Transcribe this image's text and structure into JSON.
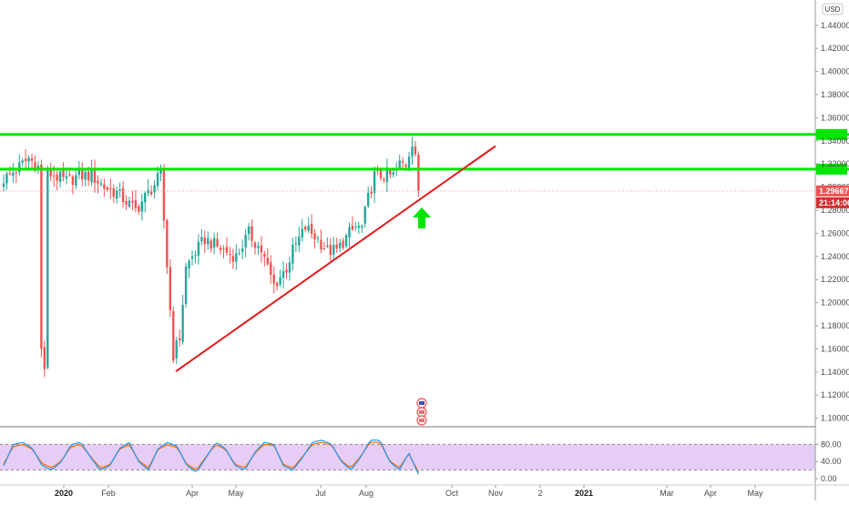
{
  "colors": {
    "up": "#26a69a",
    "down": "#ef5350",
    "support_resistance": "#00e600",
    "trendline": "#e31b1b",
    "arrow": "#00e600",
    "stoch_band": "#e1c4f4",
    "stoch_k": "#2196f3",
    "stoch_d": "#ff6d00",
    "price_badge": "#ef5350"
  },
  "currency_label": "USD",
  "current_price_label": "1.29667",
  "countdown_label": "21:14:06",
  "chart_data": [
    {
      "type": "candlestick",
      "series_name": "GBPUSD daily",
      "y_axis": {
        "ticks": [
          "1.44000",
          "1.42000",
          "1.40000",
          "1.38000",
          "1.36000",
          "1.34000",
          "1.32000",
          "1.30000",
          "1.28000",
          "1.26000",
          "1.24000",
          "1.22000",
          "1.20000",
          "1.18000",
          "1.16000",
          "1.14000",
          "1.12000",
          "1.10000"
        ],
        "range": [
          1.095,
          1.465
        ]
      },
      "x_axis": {
        "labels": [
          {
            "text": "2020",
            "bold": true
          },
          {
            "text": "Feb",
            "bold": false
          },
          {
            "text": "Apr",
            "bold": false
          },
          {
            "text": "May",
            "bold": false
          },
          {
            "text": "Jul",
            "bold": false
          },
          {
            "text": "Aug",
            "bold": false
          },
          {
            "text": "Oct",
            "bold": false
          },
          {
            "text": "Nov",
            "bold": false
          },
          {
            "text": "2",
            "bold": false
          },
          {
            "text": "2021",
            "bold": true
          },
          {
            "text": "Mar",
            "bold": false
          },
          {
            "text": "Apr",
            "bold": false
          },
          {
            "text": "May",
            "bold": false
          }
        ]
      },
      "candle_anchors_close": [
        1.307,
        1.315,
        1.325,
        1.315,
        1.31,
        1.305,
        1.31,
        1.31,
        1.3,
        1.295,
        1.28,
        1.295,
        1.31,
        1.155,
        1.17,
        1.23,
        1.24,
        1.255,
        1.25,
        1.245,
        1.24,
        1.26,
        1.245,
        1.23,
        1.215,
        1.23,
        1.245,
        1.265,
        1.255,
        1.245,
        1.245,
        1.26,
        1.265,
        1.265,
        1.29,
        1.31,
        1.31,
        1.31,
        1.31,
        1.32,
        1.32,
        1.34,
        1.33,
        1.297
      ],
      "horizontal_levels": [
        1.3455,
        1.3155
      ],
      "current_price": 1.29667,
      "trendline": {
        "from": {
          "index": 13,
          "price": 1.1405
        },
        "to": {
          "index": 54,
          "price": 1.3355
        }
      }
    },
    {
      "type": "line",
      "indicator": "stochastic",
      "y_axis": {
        "ticks": [
          "80.00",
          "40.00",
          "0.00"
        ],
        "range": [
          0,
          100
        ]
      },
      "band": [
        20,
        80
      ],
      "k_anchors": [
        30,
        80,
        85,
        70,
        30,
        20,
        40,
        80,
        85,
        50,
        20,
        30,
        70,
        85,
        40,
        20,
        70,
        85,
        75,
        30,
        15,
        50,
        85,
        70,
        30,
        20,
        60,
        85,
        80,
        30,
        20,
        50,
        85,
        90,
        80,
        40,
        20,
        50,
        90,
        90,
        40,
        20,
        60,
        10
      ],
      "d_anchors": [
        35,
        75,
        80,
        68,
        35,
        25,
        42,
        75,
        80,
        52,
        25,
        32,
        68,
        80,
        42,
        25,
        68,
        80,
        72,
        33,
        20,
        52,
        80,
        68,
        33,
        25,
        58,
        80,
        78,
        33,
        25,
        52,
        80,
        85,
        78,
        42,
        25,
        52,
        85,
        85,
        42,
        25,
        58,
        15
      ]
    }
  ]
}
